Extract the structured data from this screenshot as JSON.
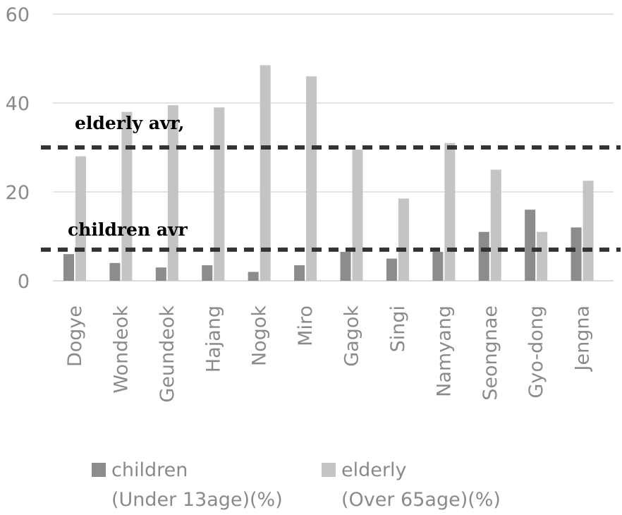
{
  "chart_data": {
    "type": "bar",
    "title": "",
    "xlabel": "",
    "ylabel": "",
    "ylim": [
      0,
      60
    ],
    "yticks": [
      0,
      20,
      40,
      60
    ],
    "grid": true,
    "legend_position": "bottom",
    "categories": [
      "Dogye",
      "Wondeok",
      "Geundeok",
      "Hajang",
      "Nogok",
      "Miro",
      "Gagok",
      "Singi",
      "Namyang",
      "Seongnae",
      "Gyo-dong",
      "Jengna"
    ],
    "series": [
      {
        "name": "children",
        "legend_lines": [
          "children",
          "(Under 13age)(%)"
        ],
        "color": "#8c8c8c",
        "values": [
          6,
          4,
          3,
          3.5,
          2,
          3.5,
          6.5,
          5,
          6.5,
          11,
          16,
          12
        ]
      },
      {
        "name": "elderly",
        "legend_lines": [
          "elderly",
          "(Over 65age)(%)"
        ],
        "color": "#c4c4c4",
        "values": [
          28,
          38,
          39.5,
          39,
          48.5,
          46,
          29.5,
          18.5,
          31,
          25,
          11,
          22.5
        ]
      }
    ],
    "reference_lines": [
      {
        "label": "elderly avr,",
        "value": 30,
        "color": "#333333"
      },
      {
        "label": "children avr",
        "value": 7,
        "color": "#333333"
      }
    ]
  }
}
